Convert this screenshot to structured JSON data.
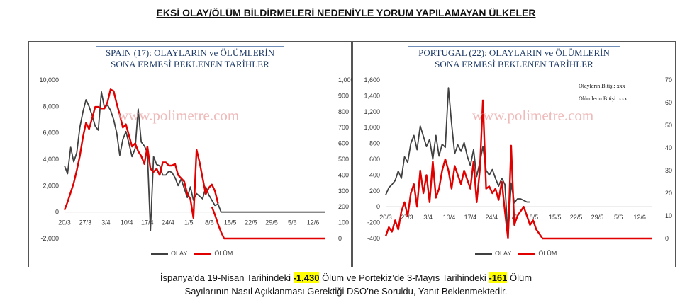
{
  "page": {
    "title": "EKSİ OLAY/ÖLÜM BİLDİRMELERİ NEDENİYLE YORUM YAPILAMAYAN ÜLKELER"
  },
  "footer": {
    "line1_a": "İspanya’da 19-Nisan Tarihindeki ",
    "line1_b": "-1,430",
    "line1_c": " Ölüm ve Portekiz’de 3-Mayıs Tarihindeki ",
    "line1_d": "-161",
    "line1_e": " Ölüm",
    "line2": "Sayılarının Nasıl Açıklanması Gerektiği DSÖ’ne Soruldu, Yanıt Beklenmektedir."
  },
  "colors": {
    "olay": "#404040",
    "olum": "#e00000",
    "title_border": "#6f8fb8"
  },
  "chart_data": [
    {
      "type": "line",
      "title_line1": "SPAIN (17): OLAYLARIN  ve ÖLÜMLERİN",
      "title_line2": "SONA ERMESİ BEKLENEN TARİHLER",
      "watermark": "www.polimetre.com",
      "x_tick_labels": [
        "20/3",
        "27/3",
        "3/4",
        "10/4",
        "17/4",
        "24/4",
        "1/5",
        "8/5",
        "15/5",
        "22/5",
        "29/5",
        "5/6",
        "12/6"
      ],
      "y_left": {
        "min": -2000,
        "max": 10000,
        "ticks": [
          -2000,
          0,
          2000,
          4000,
          6000,
          8000,
          10000
        ],
        "tick_labels": [
          "-2,000",
          "0",
          "2,000",
          "4,000",
          "6,000",
          "8,000",
          "10,000"
        ]
      },
      "y_right": {
        "min": 0,
        "max": 1000,
        "ticks": [
          0,
          100,
          200,
          300,
          400,
          500,
          600,
          700,
          800,
          900,
          1000
        ],
        "tick_labels": [
          "0",
          "100",
          "200",
          "300",
          "400",
          "500",
          "600",
          "700",
          "800",
          "900",
          "1,000"
        ]
      },
      "legend": [
        "OLAY",
        "ÖLÜM"
      ],
      "series": [
        {
          "name": "OLAY",
          "axis": "left",
          "values": [
            3500,
            2900,
            4900,
            3800,
            4500,
            6400,
            7600,
            8500,
            8000,
            7300,
            6500,
            6200,
            9100,
            7900,
            8100,
            7700,
            7000,
            6000,
            4300,
            5500,
            6100,
            5200,
            4200,
            4800,
            7800,
            5300,
            5000,
            4500,
            -1400,
            4200,
            3600,
            3500,
            2800,
            2800,
            3100,
            3000,
            2600,
            2000,
            2500,
            1800,
            1100,
            1900,
            900,
            1400,
            1200,
            1000,
            1900,
            1300,
            900,
            500,
            600,
            null,
            null,
            null,
            null,
            null,
            null,
            null,
            null,
            null,
            null,
            null,
            null,
            null,
            null,
            null,
            null,
            null,
            null,
            null,
            null,
            null,
            null,
            null,
            null,
            null,
            null,
            null,
            null,
            null,
            null,
            null,
            null,
            null,
            null,
            null
          ]
        },
        {
          "name": "OLAY_trend",
          "axis": "left",
          "values": [
            null,
            null,
            null,
            null,
            null,
            null,
            null,
            null,
            null,
            null,
            null,
            null,
            null,
            null,
            null,
            null,
            null,
            null,
            null,
            null,
            null,
            null,
            null,
            null,
            null,
            null,
            null,
            null,
            null,
            null,
            null,
            null,
            null,
            null,
            null,
            null,
            null,
            null,
            null,
            null,
            null,
            null,
            null,
            null,
            null,
            null,
            null,
            null,
            null,
            null,
            600,
            0,
            0,
            0,
            0,
            0,
            0,
            0,
            0,
            0,
            0,
            0,
            0,
            0,
            0,
            0,
            0,
            0,
            0,
            0,
            0,
            0,
            0,
            0,
            0,
            0,
            0,
            0,
            0,
            0,
            0,
            0,
            0,
            0,
            0,
            0
          ]
        },
        {
          "name": "ÖLÜM",
          "axis": "right",
          "values": [
            180,
            230,
            290,
            350,
            430,
            520,
            640,
            730,
            690,
            760,
            830,
            830,
            820,
            820,
            860,
            940,
            930,
            850,
            780,
            700,
            720,
            650,
            580,
            600,
            550,
            520,
            470,
            580,
            440,
            420,
            440,
            400,
            480,
            480,
            460,
            460,
            470,
            400,
            380,
            360,
            280,
            250,
            130,
            560,
            480,
            380,
            280,
            320,
            340,
            300,
            220,
            null,
            null,
            null,
            null,
            null,
            null,
            null,
            null,
            null,
            null,
            null,
            null,
            null,
            null,
            null,
            null,
            null,
            null,
            null,
            null,
            null,
            null,
            null,
            null,
            null,
            null,
            null,
            null,
            null,
            null,
            null,
            null,
            null,
            null,
            null
          ]
        },
        {
          "name": "ÖLÜM_trend",
          "axis": "right",
          "values": [
            null,
            null,
            null,
            null,
            null,
            null,
            null,
            null,
            null,
            null,
            null,
            null,
            null,
            null,
            null,
            null,
            null,
            null,
            null,
            null,
            null,
            null,
            null,
            null,
            null,
            null,
            null,
            null,
            null,
            null,
            null,
            null,
            null,
            null,
            null,
            null,
            null,
            null,
            null,
            null,
            null,
            null,
            null,
            null,
            null,
            null,
            null,
            null,
            200,
            150,
            90,
            40,
            0,
            0,
            0,
            0,
            0,
            0,
            0,
            0,
            0,
            0,
            0,
            0,
            0,
            0,
            0,
            0,
            0,
            0,
            0,
            0,
            0,
            0,
            0,
            0,
            0,
            0,
            0,
            0,
            0,
            0,
            0,
            0,
            0,
            0
          ]
        }
      ]
    },
    {
      "type": "line",
      "title_line1": "PORTUGAL  (22): OLAYLARIN  ve ÖLÜMLERİN",
      "title_line2": "SONA ERMESİ BEKLENEN TARİHLER",
      "watermark": "www.polimetre.com",
      "annotations": [
        "Olayların Bitişi: xxx",
        "Ölümlerin Bitişi: xxx"
      ],
      "x_tick_labels": [
        "20/3",
        "27/3",
        "3/4",
        "10/4",
        "17/4",
        "24/4",
        "1/5",
        "8/5",
        "15/5",
        "22/5",
        "29/5",
        "5/6",
        "12/6"
      ],
      "y_left": {
        "min": -400,
        "max": 1600,
        "ticks": [
          -400,
          -200,
          0,
          200,
          400,
          600,
          800,
          1000,
          1200,
          1400,
          1600
        ],
        "tick_labels": [
          "-400",
          "-200",
          "0",
          "200",
          "400",
          "600",
          "800",
          "1,000",
          "1,200",
          "1,400",
          "1,600"
        ]
      },
      "y_right": {
        "min": 0,
        "max": 70,
        "ticks": [
          0,
          10,
          20,
          30,
          40,
          50,
          60,
          70
        ],
        "tick_labels": [
          "0",
          "10",
          "20",
          "30",
          "40",
          "50",
          "60",
          "70"
        ]
      },
      "legend": [
        "OLAY",
        "ÖLÜM"
      ],
      "series": [
        {
          "name": "OLAY",
          "axis": "left",
          "values": [
            150,
            240,
            280,
            330,
            450,
            360,
            630,
            560,
            800,
            900,
            720,
            1020,
            890,
            760,
            850,
            600,
            900,
            640,
            790,
            750,
            1500,
            1050,
            670,
            780,
            700,
            810,
            640,
            520,
            720,
            380,
            560,
            760,
            460,
            400,
            470,
            360,
            260,
            360,
            280,
            -380,
            300,
            50,
            100,
            100,
            80,
            60,
            60,
            null,
            null,
            null,
            null,
            null,
            null,
            null,
            null,
            null,
            null,
            null,
            null,
            null,
            null,
            null,
            null,
            null,
            null,
            null,
            null,
            null,
            null,
            null,
            null,
            null,
            null,
            null,
            null,
            null,
            null,
            null,
            null,
            null,
            null,
            null,
            null,
            null,
            null,
            null
          ]
        },
        {
          "name": "ÖLÜM",
          "axis": "right",
          "values": [
            1,
            5,
            3,
            8,
            4,
            12,
            16,
            10,
            20,
            24,
            14,
            30,
            20,
            28,
            16,
            34,
            18,
            22,
            30,
            35,
            30,
            22,
            32,
            28,
            24,
            30,
            26,
            22,
            34,
            16,
            30,
            61,
            22,
            23,
            20,
            22,
            17,
            25,
            12,
            0,
            41,
            6,
            10,
            12,
            14,
            10,
            6,
            8,
            4,
            2,
            0,
            0,
            0,
            0,
            0,
            0,
            0,
            0,
            0,
            0,
            0,
            0,
            0,
            0,
            0,
            0,
            0,
            0,
            0,
            0,
            0,
            0,
            0,
            0,
            0,
            0,
            0,
            0,
            0,
            0,
            0,
            0,
            0,
            0,
            0,
            0
          ]
        }
      ]
    }
  ]
}
